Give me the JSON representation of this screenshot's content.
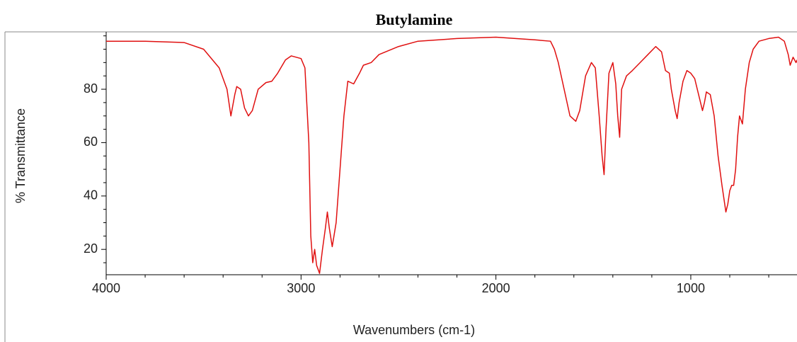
{
  "chart_data": {
    "type": "line",
    "title": "Butylamine",
    "xlabel": "Wavenumbers (cm-1)",
    "ylabel": "% Transmittance",
    "x": [
      4000,
      3800,
      3600,
      3500,
      3420,
      3380,
      3360,
      3340,
      3330,
      3310,
      3290,
      3270,
      3250,
      3220,
      3180,
      3150,
      3120,
      3080,
      3050,
      3000,
      2980,
      2960,
      2950,
      2940,
      2930,
      2920,
      2905,
      2890,
      2875,
      2865,
      2855,
      2840,
      2820,
      2800,
      2780,
      2760,
      2730,
      2700,
      2680,
      2640,
      2600,
      2500,
      2400,
      2200,
      2000,
      1800,
      1720,
      1700,
      1680,
      1650,
      1620,
      1590,
      1570,
      1540,
      1510,
      1490,
      1470,
      1455,
      1445,
      1435,
      1420,
      1400,
      1385,
      1375,
      1365,
      1355,
      1330,
      1300,
      1260,
      1220,
      1180,
      1150,
      1130,
      1110,
      1100,
      1080,
      1070,
      1060,
      1040,
      1020,
      1000,
      980,
      960,
      940,
      930,
      920,
      900,
      880,
      860,
      840,
      820,
      810,
      800,
      790,
      780,
      770,
      760,
      750,
      735,
      720,
      700,
      680,
      650,
      600,
      550,
      520,
      500,
      490,
      475,
      460,
      455
    ],
    "series": [
      {
        "name": "Butylamine",
        "color": "#e01010",
        "values": [
          98,
          98,
          97.5,
          95,
          88,
          80,
          70,
          78,
          81,
          80,
          73,
          70,
          72,
          80,
          82.5,
          83,
          86,
          91,
          92.5,
          91.5,
          88,
          60,
          25,
          15,
          20,
          14,
          11,
          20,
          28,
          34,
          28,
          21,
          30,
          50,
          70,
          83,
          82,
          86,
          89,
          90,
          93,
          96,
          98,
          99,
          99.5,
          98.5,
          98,
          95,
          90,
          80,
          70,
          68,
          72,
          85,
          90,
          88,
          70,
          55,
          48,
          65,
          86,
          90,
          82,
          70,
          62,
          80,
          85,
          87,
          90,
          93,
          96,
          94,
          87,
          86,
          80,
          72,
          69,
          75,
          83,
          87,
          86,
          84,
          78,
          72,
          75,
          79,
          78,
          70,
          55,
          44,
          34,
          37,
          42,
          44,
          44,
          50,
          62,
          70,
          67,
          80,
          90,
          95,
          98,
          99,
          99.5,
          98,
          93,
          89,
          92,
          90,
          91
        ]
      }
    ],
    "xlim": [
      4000,
      455
    ],
    "ylim": [
      10.5,
      101.5
    ],
    "xticks": [
      4000,
      3000,
      2000,
      1000
    ],
    "xminorticks": [
      3800,
      3600,
      3400,
      3200,
      2800,
      2600,
      2400,
      2200,
      1800,
      1600,
      1400,
      1200,
      800,
      600
    ],
    "yticks": [
      20,
      40,
      60,
      80
    ],
    "yminorticks": [
      15,
      25,
      30,
      35,
      45,
      50,
      55,
      65,
      70,
      75,
      85,
      90,
      95,
      100
    ]
  }
}
